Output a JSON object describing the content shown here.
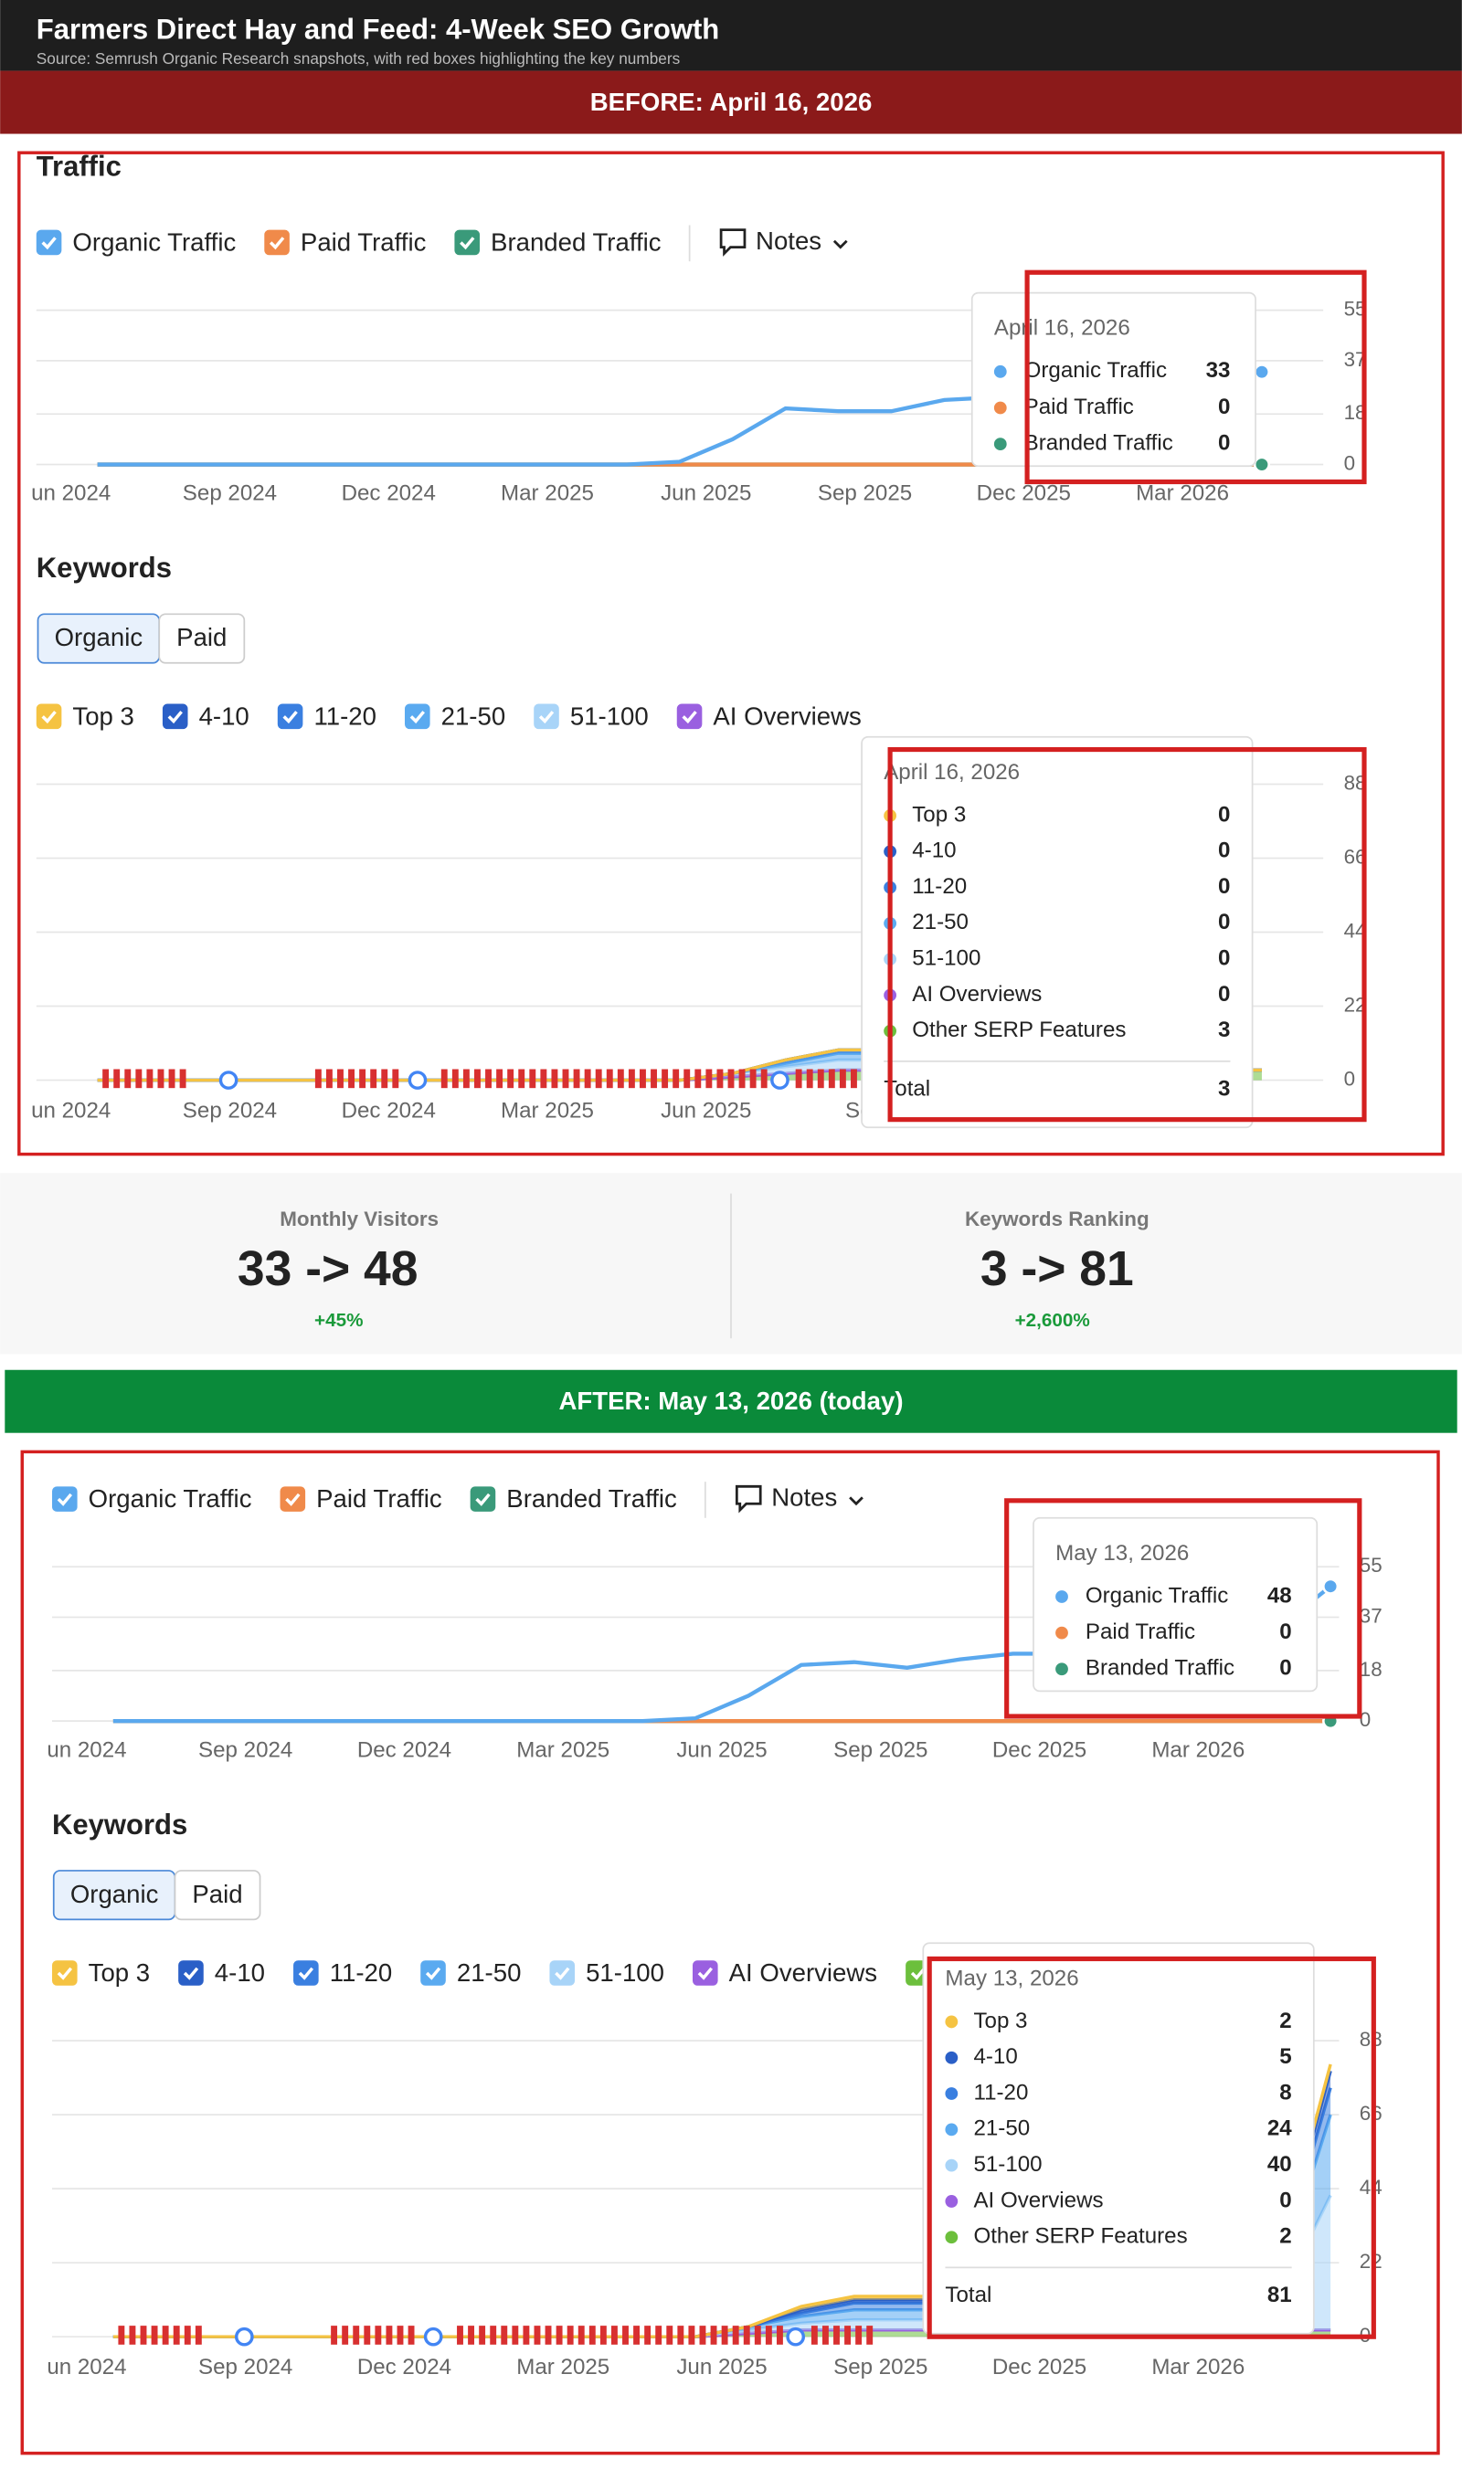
{
  "header": {
    "title": "Farmers Direct Hay and Feed: 4-Week SEO Growth",
    "source": "Source: Semrush Organic Research snapshots, with red boxes highlighting the key numbers"
  },
  "before": {
    "banner": "BEFORE: April 16, 2026",
    "traffic": {
      "title": "Traffic",
      "notes": "Notes",
      "xticks": [
        "un 2024",
        "Sep 2024",
        "Dec 2024",
        "Mar 2025",
        "Jun 2025",
        "Sep 2025",
        "Dec 2025",
        "Mar 2026"
      ],
      "ylim": [
        0,
        55
      ],
      "yticks": [
        0,
        18,
        37,
        55
      ],
      "series": [
        {
          "name": "Organic Traffic",
          "color": "#5aa8ee",
          "values": [
            0,
            0,
            0,
            0,
            0,
            0,
            0,
            0,
            0,
            0,
            0,
            1,
            9,
            20,
            19,
            19,
            23,
            24,
            28,
            30,
            32,
            33,
            33
          ]
        },
        {
          "name": "Paid Traffic",
          "color": "#f08a4a",
          "values": [
            0,
            0,
            0,
            0,
            0,
            0,
            0,
            0,
            0,
            0,
            0,
            0,
            0,
            0,
            0,
            0,
            0,
            0,
            0,
            0,
            0,
            0,
            0
          ]
        },
        {
          "name": "Branded Traffic",
          "color": "#3a9a7a",
          "values": [
            0,
            0,
            0,
            0,
            0,
            0,
            0,
            0,
            0,
            0,
            0,
            0,
            0,
            0,
            0,
            0,
            0,
            0,
            0,
            0,
            0,
            0,
            0
          ]
        }
      ],
      "tooltip": {
        "date": "April 16, 2026",
        "values": [
          33,
          0,
          0
        ]
      }
    },
    "keywords": {
      "title": "Keywords",
      "tabs": [
        "Organic",
        "Paid"
      ],
      "xticks": [
        "un 2024",
        "Sep 2024",
        "Dec 2024",
        "Mar 2025",
        "Jun 2025",
        "Sep"
      ],
      "ylim": [
        0,
        88
      ],
      "yticks": [
        0,
        22,
        44,
        66,
        88
      ],
      "series": [
        {
          "name": "Top 3",
          "color": "#f5c342",
          "values": [
            0,
            0,
            0,
            0,
            0,
            0,
            0,
            0,
            0,
            0,
            0,
            0,
            0,
            0,
            0,
            0,
            0,
            0,
            0,
            0,
            0,
            0,
            0
          ]
        },
        {
          "name": "4-10",
          "color": "#2a5fc7",
          "values": [
            0,
            0,
            0,
            0,
            0,
            0,
            0,
            0,
            0,
            0,
            0,
            0,
            0,
            0,
            0,
            0,
            0,
            0,
            0,
            0,
            0,
            0,
            0
          ]
        },
        {
          "name": "11-20",
          "color": "#3a7fe0",
          "values": [
            0,
            0,
            0,
            0,
            0,
            0,
            0,
            0,
            0,
            0,
            0,
            0,
            0,
            1,
            1,
            1,
            1,
            0,
            0,
            0,
            0,
            0,
            0
          ]
        },
        {
          "name": "21-50",
          "color": "#5aaaf0",
          "values": [
            0,
            0,
            0,
            0,
            0,
            0,
            0,
            0,
            0,
            0,
            0,
            0,
            0,
            1,
            2,
            2,
            2,
            1,
            1,
            0,
            0,
            0,
            0
          ]
        },
        {
          "name": "51-100",
          "color": "#a8d4f8",
          "values": [
            0,
            0,
            0,
            0,
            0,
            0,
            0,
            0,
            0,
            0,
            0,
            0,
            1,
            2,
            3,
            3,
            3,
            2,
            2,
            1,
            1,
            0,
            0
          ]
        },
        {
          "name": "AI Overviews",
          "color": "#9a60e0",
          "values": [
            0,
            0,
            0,
            0,
            0,
            0,
            0,
            0,
            0,
            0,
            0,
            0,
            0,
            0,
            0,
            0,
            0,
            0,
            0,
            0,
            0,
            0,
            0
          ]
        },
        {
          "name": "Other SERP Features",
          "color": "#6cbf3c",
          "values": [
            0,
            0,
            0,
            0,
            0,
            0,
            0,
            0,
            0,
            0,
            0,
            0,
            1,
            2,
            3,
            3,
            3,
            3,
            3,
            3,
            3,
            3,
            3
          ]
        }
      ],
      "tooltip": {
        "date": "April 16, 2026",
        "values": [
          0,
          0,
          0,
          0,
          0,
          0,
          3
        ],
        "total_label": "Total",
        "total": 3
      }
    }
  },
  "summary": [
    {
      "label": "Monthly Visitors",
      "value": "33 -> 48",
      "change": "+45%"
    },
    {
      "label": "Keywords Ranking",
      "value": "3 -> 81",
      "change": "+2,600%"
    }
  ],
  "after": {
    "banner": "AFTER: May 13, 2026 (today)",
    "traffic": {
      "notes": "Notes",
      "xticks": [
        "un 2024",
        "Sep 2024",
        "Dec 2024",
        "Mar 2025",
        "Jun 2025",
        "Sep 2025",
        "Dec 2025",
        "Mar 2026"
      ],
      "ylim": [
        0,
        55
      ],
      "yticks": [
        0,
        18,
        37,
        55
      ],
      "series": [
        {
          "name": "Organic Traffic",
          "color": "#5aa8ee",
          "values": [
            0,
            0,
            0,
            0,
            0,
            0,
            0,
            0,
            0,
            0,
            0,
            1,
            9,
            20,
            21,
            19,
            22,
            24,
            24,
            26,
            27,
            30,
            33,
            48
          ]
        },
        {
          "name": "Paid Traffic",
          "color": "#f08a4a",
          "values": [
            0,
            0,
            0,
            0,
            0,
            0,
            0,
            0,
            0,
            0,
            0,
            0,
            0,
            0,
            0,
            0,
            0,
            0,
            0,
            0,
            0,
            0,
            0,
            0
          ]
        },
        {
          "name": "Branded Traffic",
          "color": "#3a9a7a",
          "values": [
            0,
            0,
            0,
            0,
            0,
            0,
            0,
            0,
            0,
            0,
            0,
            0,
            0,
            0,
            0,
            0,
            0,
            0,
            0,
            0,
            0,
            0,
            0,
            0
          ]
        }
      ],
      "tooltip": {
        "date": "May 13, 2026",
        "values": [
          48,
          0,
          0
        ]
      }
    },
    "keywords": {
      "title": "Keywords",
      "tabs": [
        "Organic",
        "Paid"
      ],
      "xticks": [
        "un 2024",
        "Sep 2024",
        "Dec 2024",
        "Mar 2025",
        "Jun 2025",
        "Sep 2025",
        "Dec 2025",
        "Mar 2026"
      ],
      "ylim": [
        0,
        88
      ],
      "yticks": [
        0,
        22,
        44,
        66,
        88
      ],
      "series": [
        {
          "name": "Top 3",
          "color": "#f5c342",
          "values": [
            0,
            0,
            0,
            0,
            0,
            0,
            0,
            0,
            0,
            0,
            0,
            0,
            0,
            1,
            1,
            1,
            1,
            1,
            1,
            1,
            1,
            1,
            1,
            2
          ]
        },
        {
          "name": "4-10",
          "color": "#2a5fc7",
          "values": [
            0,
            0,
            0,
            0,
            0,
            0,
            0,
            0,
            0,
            0,
            0,
            0,
            0,
            1,
            1,
            1,
            1,
            1,
            1,
            1,
            1,
            1,
            2,
            5
          ]
        },
        {
          "name": "11-20",
          "color": "#3a7fe0",
          "values": [
            0,
            0,
            0,
            0,
            0,
            0,
            0,
            0,
            0,
            0,
            0,
            0,
            0,
            1,
            2,
            2,
            2,
            2,
            2,
            2,
            2,
            2,
            3,
            8
          ]
        },
        {
          "name": "21-50",
          "color": "#5aaaf0",
          "values": [
            0,
            0,
            0,
            0,
            0,
            0,
            0,
            0,
            0,
            0,
            0,
            0,
            1,
            2,
            3,
            3,
            3,
            3,
            3,
            3,
            3,
            4,
            6,
            24
          ]
        },
        {
          "name": "51-100",
          "color": "#a8d4f8",
          "values": [
            0,
            0,
            0,
            0,
            0,
            0,
            0,
            0,
            0,
            0,
            0,
            0,
            1,
            2,
            3,
            3,
            3,
            3,
            3,
            3,
            3,
            4,
            8,
            40
          ]
        },
        {
          "name": "AI Overviews",
          "color": "#9a60e0",
          "values": [
            0,
            0,
            0,
            0,
            0,
            0,
            0,
            0,
            0,
            0,
            0,
            0,
            0,
            0,
            0,
            0,
            0,
            0,
            0,
            0,
            0,
            0,
            0,
            0
          ]
        },
        {
          "name": "Other SERP Features",
          "color": "#6cbf3c",
          "values": [
            0,
            0,
            0,
            0,
            0,
            0,
            0,
            0,
            0,
            0,
            0,
            0,
            1,
            2,
            2,
            2,
            2,
            2,
            2,
            2,
            2,
            2,
            2,
            2
          ]
        }
      ],
      "tooltip": {
        "date": "May 13, 2026",
        "values": [
          2,
          5,
          8,
          24,
          40,
          0,
          2
        ],
        "total_label": "Total",
        "total": 81
      }
    }
  }
}
